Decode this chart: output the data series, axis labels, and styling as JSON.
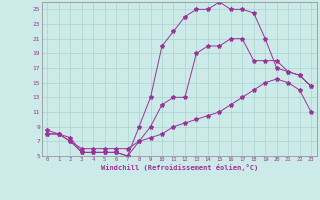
{
  "xlabel": "Windchill (Refroidissement éolien,°C)",
  "bg_color": "#cceae8",
  "line_color": "#993399",
  "grid_color": "#aad4d0",
  "xlim": [
    -0.5,
    23.5
  ],
  "ylim": [
    5,
    26
  ],
  "yticks": [
    5,
    7,
    9,
    11,
    13,
    15,
    17,
    19,
    21,
    23,
    25
  ],
  "xticks": [
    0,
    1,
    2,
    3,
    4,
    5,
    6,
    7,
    8,
    9,
    10,
    11,
    12,
    13,
    14,
    15,
    16,
    17,
    18,
    19,
    20,
    21,
    22,
    23
  ],
  "line1_x": [
    0,
    1,
    2,
    3,
    4,
    5,
    6,
    7,
    8,
    9,
    10,
    11,
    12,
    13,
    14,
    15,
    16,
    17,
    18,
    19,
    20,
    21,
    22,
    23
  ],
  "line1_y": [
    8,
    8,
    7,
    6,
    6,
    6,
    6,
    6,
    7,
    7.5,
    8,
    9,
    9.5,
    10,
    10.5,
    11,
    12,
    13,
    14,
    15,
    15.5,
    15,
    14,
    11
  ],
  "line2_x": [
    0,
    1,
    2,
    3,
    4,
    5,
    6,
    7,
    8,
    9,
    10,
    11,
    12,
    13,
    14,
    15,
    16,
    17,
    18,
    19,
    20,
    21,
    22,
    23
  ],
  "line2_y": [
    8,
    8,
    7,
    5.5,
    5.5,
    5.5,
    5.5,
    5,
    7,
    9,
    12,
    13,
    13,
    19,
    20,
    20,
    21,
    21,
    18,
    18,
    18,
    16.5,
    16,
    14.5
  ],
  "line3_x": [
    0,
    1,
    2,
    3,
    4,
    5,
    6,
    7,
    8,
    9,
    10,
    11,
    12,
    13,
    14,
    15,
    16,
    17,
    18,
    19,
    20,
    21,
    22,
    23
  ],
  "line3_y": [
    8.5,
    8,
    7.5,
    5.5,
    5.5,
    5.5,
    5.5,
    5,
    9,
    13,
    20,
    22,
    24,
    25,
    25,
    26,
    25,
    25,
    24.5,
    21,
    17,
    16.5,
    16,
    14.5
  ]
}
